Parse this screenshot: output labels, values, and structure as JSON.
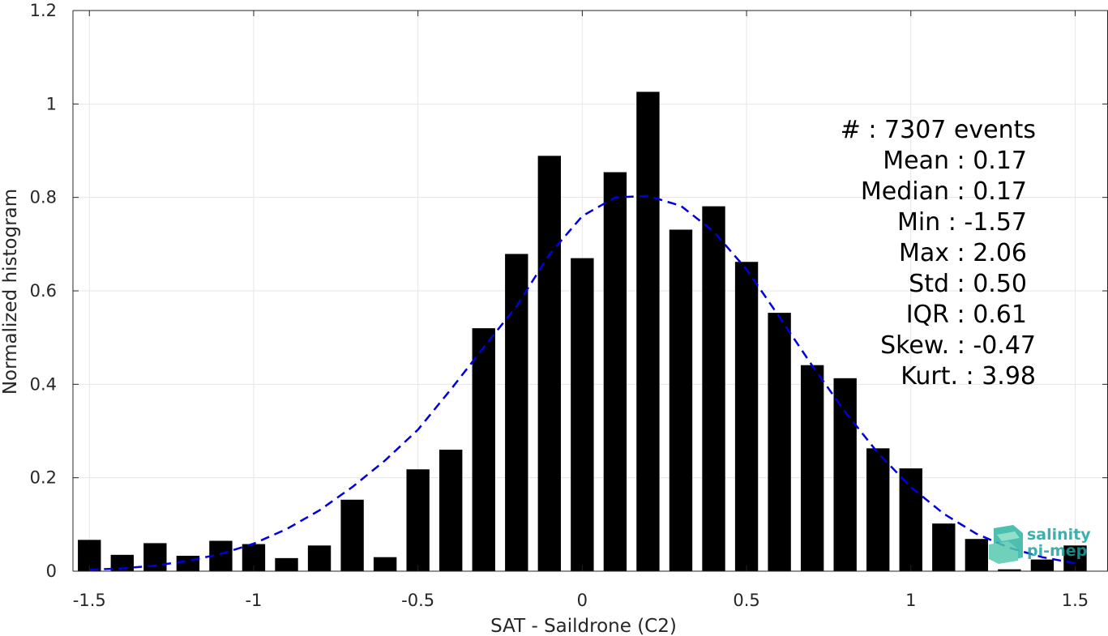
{
  "chart_data": {
    "type": "bar",
    "xlabel": "SAT - Saildrone (C2)",
    "ylabel": "Normalized histogram",
    "xlim": [
      -1.55,
      1.6
    ],
    "ylim": [
      0,
      1.2
    ],
    "xticks": [
      -1.5,
      -1,
      -0.5,
      0,
      0.5,
      1,
      1.5
    ],
    "xtick_labels": [
      "-1.5",
      "-1",
      "-0.5",
      "0",
      "0.5",
      "1",
      "1.5"
    ],
    "yticks": [
      0,
      0.2,
      0.4,
      0.6,
      0.8,
      1,
      1.2
    ],
    "ytick_labels": [
      "0",
      "0.2",
      "0.4",
      "0.6",
      "0.8",
      "1",
      "1.2"
    ],
    "grid": true,
    "bar_color": "#000000",
    "bin_width": 0.1,
    "bars": {
      "x": [
        -1.5,
        -1.4,
        -1.3,
        -1.2,
        -1.1,
        -1.0,
        -0.9,
        -0.8,
        -0.7,
        -0.6,
        -0.5,
        -0.4,
        -0.3,
        -0.2,
        -0.1,
        0.0,
        0.1,
        0.2,
        0.3,
        0.4,
        0.5,
        0.6,
        0.7,
        0.8,
        0.9,
        1.0,
        1.1,
        1.2,
        1.3,
        1.4,
        1.5
      ],
      "values": [
        0.067,
        0.035,
        0.06,
        0.033,
        0.065,
        0.058,
        0.028,
        0.055,
        0.153,
        0.03,
        0.218,
        0.26,
        0.52,
        0.679,
        0.889,
        0.67,
        0.854,
        1.026,
        0.731,
        0.781,
        0.662,
        0.553,
        0.441,
        0.413,
        0.263,
        0.22,
        0.102,
        0.069,
        0.004,
        0.025,
        0.055
      ]
    },
    "fit_curve": {
      "style": "dashed",
      "color": "#0000dd",
      "x": [
        -1.5,
        -1.4,
        -1.3,
        -1.2,
        -1.1,
        -1.0,
        -0.9,
        -0.8,
        -0.7,
        -0.6,
        -0.5,
        -0.4,
        -0.3,
        -0.2,
        -0.1,
        0.0,
        0.1,
        0.2,
        0.3,
        0.4,
        0.5,
        0.6,
        0.7,
        0.8,
        0.9,
        1.0,
        1.1,
        1.2,
        1.3,
        1.4,
        1.5
      ],
      "y": [
        0.003,
        0.006,
        0.012,
        0.022,
        0.037,
        0.059,
        0.09,
        0.13,
        0.18,
        0.237,
        0.303,
        0.389,
        0.479,
        0.567,
        0.678,
        0.76,
        0.8,
        0.803,
        0.782,
        0.727,
        0.646,
        0.544,
        0.44,
        0.341,
        0.253,
        0.18,
        0.123,
        0.08,
        0.05,
        0.03,
        0.017
      ]
    },
    "stats_box": {
      "placement": "top-right",
      "lines": [
        "#  : 7307 events",
        "Mean : 0.17",
        "Median : 0.17",
        "Min : -1.57",
        "Max : 2.06",
        "Std : 0.50",
        "IQR : 0.61",
        "Skew. : -0.47",
        "Kurt. : 3.98"
      ]
    }
  },
  "logo": {
    "line1": "salinity",
    "line2": "pi-mep",
    "icon": "salinity-pimep-logo-icon",
    "color": "#1aa3a0"
  }
}
